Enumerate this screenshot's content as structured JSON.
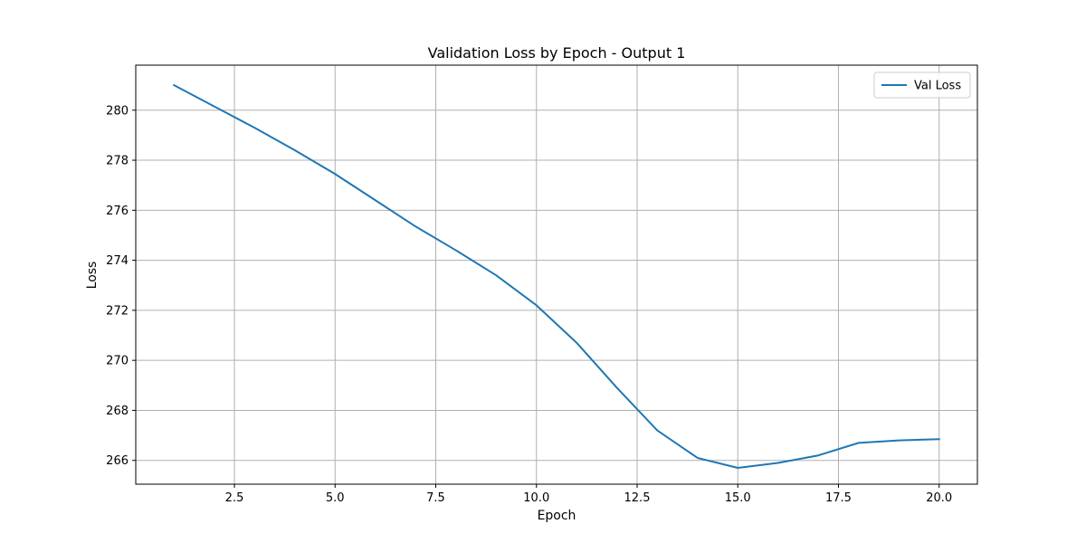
{
  "chart_data": {
    "type": "line",
    "title": "Validation Loss by Epoch - Output 1",
    "xlabel": "Epoch",
    "ylabel": "Loss",
    "xlim": [
      0.05,
      20.95
    ],
    "ylim": [
      265.05,
      281.8
    ],
    "xticks": [
      2.5,
      5.0,
      7.5,
      10.0,
      12.5,
      15.0,
      17.5,
      20.0
    ],
    "xtick_labels": [
      "2.5",
      "5.0",
      "7.5",
      "10.0",
      "12.5",
      "15.0",
      "17.5",
      "20.0"
    ],
    "yticks": [
      266,
      268,
      270,
      272,
      274,
      276,
      278,
      280
    ],
    "ytick_labels": [
      "266",
      "268",
      "270",
      "272",
      "274",
      "276",
      "278",
      "280"
    ],
    "grid": true,
    "legend_position": "top-right",
    "series": [
      {
        "name": "Val Loss",
        "color": "#1f77b4",
        "x": [
          1,
          2,
          3,
          4,
          5,
          6,
          7,
          8,
          9,
          10,
          11,
          12,
          13,
          14,
          15,
          16,
          17,
          18,
          19,
          20
        ],
        "y": [
          281.0,
          280.15,
          279.3,
          278.4,
          277.45,
          276.4,
          275.35,
          274.4,
          273.4,
          272.2,
          270.7,
          268.9,
          267.2,
          266.1,
          265.7,
          265.9,
          266.2,
          266.7,
          266.8,
          266.85
        ]
      }
    ]
  }
}
